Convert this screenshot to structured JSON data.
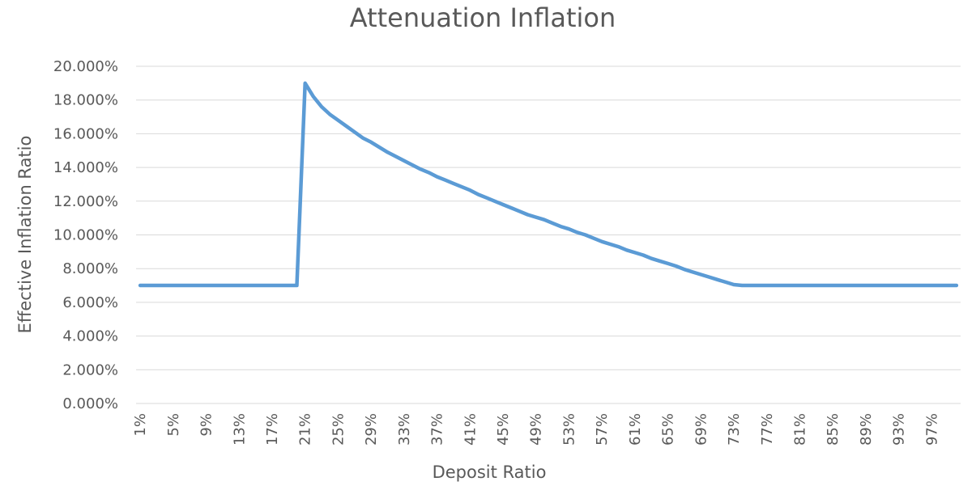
{
  "chart_data": {
    "type": "line",
    "title": "Attenuation Inflation",
    "xlabel": "Deposit Ratio",
    "ylabel": "Effective Inflation Ratio",
    "ylim": [
      0,
      0.2
    ],
    "y_ticks": [
      0,
      0.02,
      0.04,
      0.06,
      0.08,
      0.1,
      0.12,
      0.14,
      0.16,
      0.18,
      0.2
    ],
    "y_tick_labels": [
      "0.000%",
      "2.000%",
      "4.000%",
      "6.000%",
      "8.000%",
      "10.000%",
      "12.000%",
      "14.000%",
      "16.000%",
      "18.000%",
      "20.000%"
    ],
    "x_tick_labels": [
      "1%",
      "5%",
      "9%",
      "13%",
      "17%",
      "21%",
      "25%",
      "29%",
      "33%",
      "37%",
      "41%",
      "45%",
      "49%",
      "53%",
      "57%",
      "61%",
      "65%",
      "69%",
      "73%",
      "77%",
      "81%",
      "85%",
      "89%",
      "93%",
      "97%"
    ],
    "grid": true,
    "legend": "none",
    "line_color": "#5b9bd5",
    "series": [
      {
        "x": [
          1,
          2,
          3,
          4,
          5,
          6,
          7,
          8,
          9,
          10,
          11,
          12,
          13,
          14,
          15,
          16,
          17,
          18,
          19,
          20,
          21,
          22,
          23,
          24,
          25,
          26,
          27,
          28,
          29,
          30,
          31,
          32,
          33,
          34,
          35,
          36,
          37,
          38,
          39,
          40,
          41,
          42,
          43,
          44,
          45,
          46,
          47,
          48,
          49,
          50,
          51,
          52,
          53,
          54,
          55,
          56,
          57,
          58,
          59,
          60,
          61,
          62,
          63,
          64,
          65,
          66,
          67,
          68,
          69,
          70,
          71,
          72,
          73,
          74,
          75,
          76,
          77,
          78,
          79,
          80,
          81,
          82,
          83,
          84,
          85,
          86,
          87,
          88,
          89,
          90,
          91,
          92,
          93,
          94,
          95,
          96,
          97,
          98,
          99,
          100
        ],
        "values": [
          0.07,
          0.07,
          0.07,
          0.07,
          0.07,
          0.07,
          0.07,
          0.07,
          0.07,
          0.07,
          0.07,
          0.07,
          0.07,
          0.07,
          0.07,
          0.07,
          0.07,
          0.07,
          0.07,
          0.07,
          0.19,
          0.182,
          0.176,
          0.1715,
          0.168,
          0.1645,
          0.161,
          0.1575,
          0.155,
          0.152,
          0.149,
          0.1465,
          0.144,
          0.1415,
          0.139,
          0.137,
          0.1345,
          0.1325,
          0.1305,
          0.1285,
          0.1265,
          0.124,
          0.122,
          0.12,
          0.118,
          0.116,
          0.114,
          0.112,
          0.1105,
          0.109,
          0.107,
          0.105,
          0.1035,
          0.1015,
          0.1,
          0.098,
          0.096,
          0.0945,
          0.093,
          0.091,
          0.0895,
          0.088,
          0.086,
          0.0845,
          0.083,
          0.0815,
          0.0795,
          0.078,
          0.0765,
          0.075,
          0.0735,
          0.072,
          0.0705,
          0.07,
          0.07,
          0.07,
          0.07,
          0.07,
          0.07,
          0.07,
          0.07,
          0.07,
          0.07,
          0.07,
          0.07,
          0.07,
          0.07,
          0.07,
          0.07,
          0.07,
          0.07,
          0.07,
          0.07,
          0.07,
          0.07,
          0.07,
          0.07,
          0.07,
          0.07,
          0.07
        ]
      }
    ]
  }
}
